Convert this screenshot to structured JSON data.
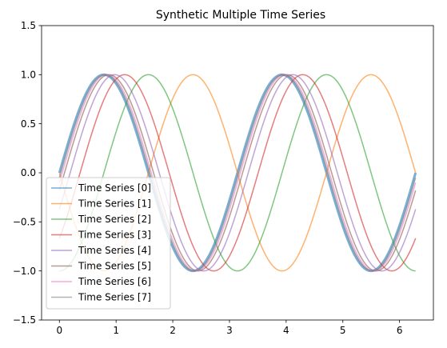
{
  "chart_data": {
    "type": "line",
    "title": "Synthetic Multiple Time Series",
    "xlabel": "",
    "ylabel": "",
    "xlim": [
      -0.3141592653589793,
      6.5973445725385655
    ],
    "ylim": [
      -1.5,
      1.5
    ],
    "xticks": [
      0,
      1,
      2,
      3,
      4,
      5,
      6
    ],
    "yticks": [
      -1.5,
      -1.0,
      -0.5,
      0.0,
      0.5,
      1.0,
      1.5
    ],
    "xtick_labels": [
      "0",
      "1",
      "2",
      "3",
      "4",
      "5",
      "6"
    ],
    "ytick_labels": [
      "−1.5",
      "−1.0",
      "−0.5",
      "0.0",
      "0.5",
      "1.0",
      "1.5"
    ],
    "grid": false,
    "legend_position": "lower-left",
    "x_domain": [
      0,
      6.283185307179586
    ],
    "function": "y = sin(2*x - phase)",
    "series": [
      {
        "name": "Time Series [0]",
        "phase": 0.0,
        "color": "#1f77b4",
        "opacity": 0.6,
        "width": 3.0
      },
      {
        "name": "Time Series [1]",
        "phase": 3.14,
        "color": "#ff7f0e",
        "opacity": 0.6,
        "width": 1.5
      },
      {
        "name": "Time Series [2]",
        "phase": 1.57,
        "color": "#2ca02c",
        "opacity": 0.6,
        "width": 1.5
      },
      {
        "name": "Time Series [3]",
        "phase": 0.73,
        "color": "#d62728",
        "opacity": 0.6,
        "width": 1.5
      },
      {
        "name": "Time Series [4]",
        "phase": 0.38,
        "color": "#9467bd",
        "opacity": 0.6,
        "width": 1.5
      },
      {
        "name": "Time Series [5]",
        "phase": 0.18,
        "color": "#8c564b",
        "opacity": 0.6,
        "width": 1.5
      },
      {
        "name": "Time Series [6]",
        "phase": 0.1,
        "color": "#e377c2",
        "opacity": 0.6,
        "width": 1.5
      },
      {
        "name": "Time Series [7]",
        "phase": 0.05,
        "color": "#7f7f7f",
        "opacity": 0.6,
        "width": 1.5
      }
    ]
  }
}
